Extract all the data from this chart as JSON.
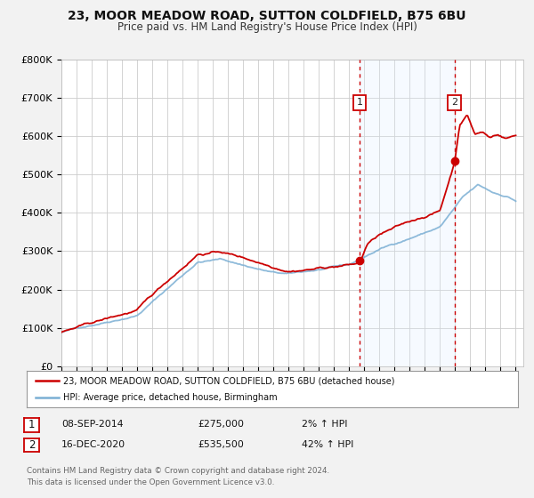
{
  "title_line1": "23, MOOR MEADOW ROAD, SUTTON COLDFIELD, B75 6BU",
  "title_line2": "Price paid vs. HM Land Registry's House Price Index (HPI)",
  "ylim": [
    0,
    800000
  ],
  "xlim_start": 1995.0,
  "xlim_end": 2025.5,
  "ytick_labels": [
    "£0",
    "£100K",
    "£200K",
    "£300K",
    "£400K",
    "£500K",
    "£600K",
    "£700K",
    "£800K"
  ],
  "ytick_values": [
    0,
    100000,
    200000,
    300000,
    400000,
    500000,
    600000,
    700000,
    800000
  ],
  "hpi_color": "#aec6e8",
  "hpi_line_color": "#7bafd4",
  "price_color": "#cc0000",
  "vline_color": "#cc0000",
  "shade_color": "#ddeeff",
  "marker1_x": 2014.69,
  "marker1_y": 275000,
  "marker2_x": 2020.96,
  "marker2_y": 535500,
  "legend_label1": "23, MOOR MEADOW ROAD, SUTTON COLDFIELD, B75 6BU (detached house)",
  "legend_label2": "HPI: Average price, detached house, Birmingham",
  "table_row1": [
    "1",
    "08-SEP-2014",
    "£275,000",
    "2% ↑ HPI"
  ],
  "table_row2": [
    "2",
    "16-DEC-2020",
    "£535,500",
    "42% ↑ HPI"
  ],
  "footnote": "Contains HM Land Registry data © Crown copyright and database right 2024.\nThis data is licensed under the Open Government Licence v3.0.",
  "background_color": "#f2f2f2",
  "plot_background": "#ffffff",
  "grid_color": "#cccccc"
}
